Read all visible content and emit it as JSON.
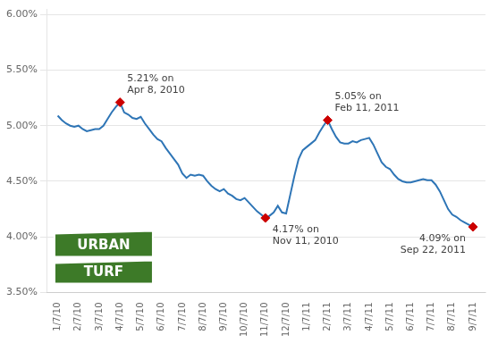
{
  "chart_data": {
    "type": "line",
    "color": "#2E75B6",
    "x": [
      0.0,
      0.2,
      0.4,
      0.6,
      0.8,
      1.0,
      1.2,
      1.4,
      1.6,
      1.8,
      2.0,
      2.2,
      2.4,
      2.6,
      2.8,
      3.0,
      3.2,
      3.4,
      3.6,
      3.8,
      4.0,
      4.2,
      4.4,
      4.6,
      4.8,
      5.0,
      5.2,
      5.4,
      5.6,
      5.8,
      6.0,
      6.2,
      6.4,
      6.6,
      6.8,
      7.0,
      7.2,
      7.4,
      7.6,
      7.8,
      8.0,
      8.2,
      8.4,
      8.6,
      8.8,
      9.0,
      9.2,
      9.4,
      9.6,
      9.8,
      10.0,
      10.2,
      10.4,
      10.6,
      10.8,
      11.0,
      11.2,
      11.4,
      11.6,
      11.8,
      12.0,
      12.2,
      12.4,
      12.6,
      12.8,
      13.0,
      13.2,
      13.4,
      13.6,
      13.8,
      14.0,
      14.2,
      14.4,
      14.6,
      14.8,
      15.0,
      15.2,
      15.4,
      15.6,
      15.8,
      16.0,
      16.2,
      16.4,
      16.6,
      16.8,
      17.0,
      17.2,
      17.4,
      17.6,
      17.8,
      18.0,
      18.2,
      18.4,
      18.6,
      18.8,
      19.0,
      19.2,
      19.4,
      19.6,
      19.8,
      20.0
    ],
    "values": [
      5.09,
      5.05,
      5.02,
      5.0,
      4.99,
      5.0,
      4.97,
      4.95,
      4.96,
      4.97,
      4.97,
      5.0,
      5.06,
      5.12,
      5.17,
      5.21,
      5.12,
      5.1,
      5.07,
      5.06,
      5.08,
      5.02,
      4.97,
      4.92,
      4.88,
      4.86,
      4.8,
      4.75,
      4.7,
      4.65,
      4.57,
      4.53,
      4.56,
      4.55,
      4.56,
      4.55,
      4.5,
      4.46,
      4.43,
      4.41,
      4.43,
      4.39,
      4.37,
      4.34,
      4.33,
      4.35,
      4.31,
      4.27,
      4.23,
      4.2,
      4.17,
      4.19,
      4.22,
      4.28,
      4.22,
      4.21,
      4.38,
      4.55,
      4.7,
      4.78,
      4.81,
      4.84,
      4.87,
      4.94,
      5.0,
      5.05,
      4.97,
      4.9,
      4.85,
      4.84,
      4.84,
      4.86,
      4.85,
      4.87,
      4.88,
      4.89,
      4.83,
      4.75,
      4.67,
      4.63,
      4.61,
      4.56,
      4.52,
      4.5,
      4.49,
      4.49,
      4.5,
      4.51,
      4.52,
      4.51,
      4.51,
      4.47,
      4.41,
      4.33,
      4.25,
      4.2,
      4.18,
      4.15,
      4.13,
      4.11,
      4.09
    ],
    "xlim": [
      -0.5,
      20.6
    ],
    "xticks": [
      {
        "value": 0,
        "label": "1/7/10"
      },
      {
        "value": 1,
        "label": "2/7/10"
      },
      {
        "value": 2,
        "label": "3/7/10"
      },
      {
        "value": 3,
        "label": "4/7/10"
      },
      {
        "value": 4,
        "label": "5/7/10"
      },
      {
        "value": 5,
        "label": "6/7/10"
      },
      {
        "value": 6,
        "label": "7/7/10"
      },
      {
        "value": 7,
        "label": "8/7/10"
      },
      {
        "value": 8,
        "label": "9/7/10"
      },
      {
        "value": 9,
        "label": "10/7/10"
      },
      {
        "value": 10,
        "label": "11/7/10"
      },
      {
        "value": 11,
        "label": "12/7/10"
      },
      {
        "value": 12,
        "label": "1/7/11"
      },
      {
        "value": 13,
        "label": "2/7/11"
      },
      {
        "value": 14,
        "label": "3/7/11"
      },
      {
        "value": 15,
        "label": "4/7/11"
      },
      {
        "value": 16,
        "label": "5/7/11"
      },
      {
        "value": 17,
        "label": "6/7/11"
      },
      {
        "value": 18,
        "label": "7/7/11"
      },
      {
        "value": 19,
        "label": "8/7/11"
      },
      {
        "value": 20,
        "label": "9/7/11"
      }
    ],
    "ylim": [
      3.5,
      6.05
    ],
    "yticks": [
      {
        "value": 3.5,
        "label": "3.50%"
      },
      {
        "value": 4.0,
        "label": "4.00%"
      },
      {
        "value": 4.5,
        "label": "4.50%"
      },
      {
        "value": 5.0,
        "label": "5.00%"
      },
      {
        "value": 5.5,
        "label": "5.50%"
      },
      {
        "value": 6.0,
        "label": "6.00%"
      }
    ],
    "grid": "y",
    "annotations": [
      {
        "x": 3.0,
        "y": 5.21,
        "text": "5.21% on\nApr 8, 2010",
        "marker": "diamond",
        "color": "#CC0000"
      },
      {
        "x": 10.0,
        "y": 4.17,
        "text": "4.17% on\nNov 11, 2010",
        "marker": "diamond",
        "color": "#CC0000"
      },
      {
        "x": 13.0,
        "y": 5.05,
        "text": "5.05% on\nFeb 11, 2011",
        "marker": "diamond",
        "color": "#CC0000"
      },
      {
        "x": 20.0,
        "y": 4.09,
        "text": "4.09% on\nSep 22, 2011",
        "marker": "diamond",
        "color": "#CC0000"
      },
      {
        "text": "URBAN",
        "color": "#3d7a28"
      },
      {
        "text": "TURF",
        "color": "#3d7a28"
      }
    ]
  }
}
